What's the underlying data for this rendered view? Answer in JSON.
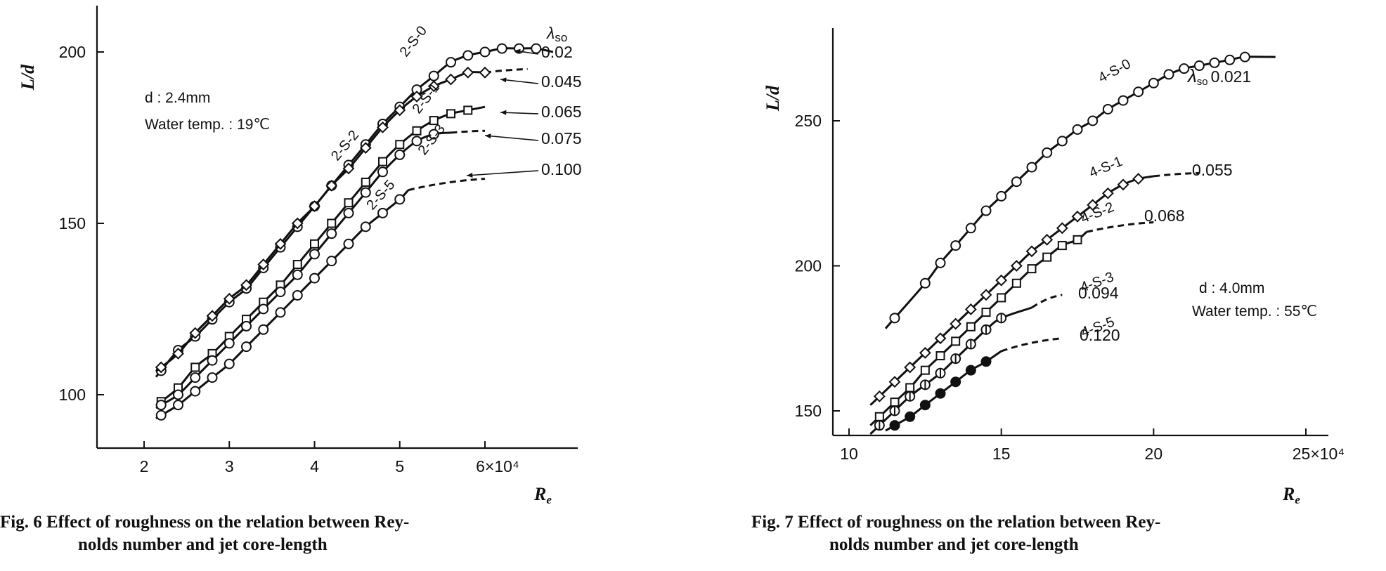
{
  "chart_data": [
    {
      "type": "line",
      "figure": "Fig. 6",
      "caption": [
        "Fig. 6  Effect of roughness on the relation between Rey-",
        "nolds number and jet core-length"
      ],
      "xlabel": "R",
      "xlabel_sub": "e",
      "ylabel": "L/d",
      "xlim": [
        1.55,
        7.1
      ],
      "ylim": [
        85,
        215
      ],
      "xticks": [
        2,
        3,
        4,
        5,
        6
      ],
      "xtick_labels": [
        "2",
        "3",
        "4",
        "5",
        "6×10⁴"
      ],
      "yticks": [
        100,
        150,
        200
      ],
      "ytick_labels": [
        "100",
        "150",
        "200"
      ],
      "legend_title": "λso",
      "notes": [
        "d : 2.4mm",
        "Water temp. : 19℃"
      ],
      "series": [
        {
          "name": "2-S-0",
          "lambda": "0.02",
          "marker": "circle",
          "points": [
            [
              2.2,
              107
            ],
            [
              2.4,
              113
            ],
            [
              2.6,
              117
            ],
            [
              2.8,
              122
            ],
            [
              3.0,
              127
            ],
            [
              3.2,
              131
            ],
            [
              3.4,
              137
            ],
            [
              3.6,
              143
            ],
            [
              3.8,
              149
            ],
            [
              4.0,
              155
            ],
            [
              4.2,
              161
            ],
            [
              4.4,
              167
            ],
            [
              4.6,
              173
            ],
            [
              4.8,
              179
            ],
            [
              5.0,
              184
            ],
            [
              5.2,
              189
            ],
            [
              5.4,
              193
            ],
            [
              5.6,
              197
            ],
            [
              5.8,
              199
            ],
            [
              6.0,
              200
            ],
            [
              6.2,
              201
            ],
            [
              6.4,
              201
            ],
            [
              6.6,
              201
            ]
          ],
          "solid_to": 6.8,
          "dashed_to": null,
          "end_value": 200
        },
        {
          "name": "2-S-1",
          "lambda": "0.045",
          "marker": "diamond",
          "points": [
            [
              2.2,
              108
            ],
            [
              2.4,
              112
            ],
            [
              2.6,
              118
            ],
            [
              2.8,
              123
            ],
            [
              3.0,
              128
            ],
            [
              3.2,
              132
            ],
            [
              3.4,
              138
            ],
            [
              3.6,
              144
            ],
            [
              3.8,
              150
            ],
            [
              4.0,
              155
            ],
            [
              4.2,
              161
            ],
            [
              4.4,
              166
            ],
            [
              4.6,
              172
            ],
            [
              4.8,
              178
            ],
            [
              5.0,
              183
            ],
            [
              5.2,
              187
            ],
            [
              5.4,
              190
            ],
            [
              5.6,
              192
            ],
            [
              5.8,
              194
            ],
            [
              6.0,
              194
            ]
          ],
          "solid_to": 6.0,
          "dashed_to": 6.5,
          "end_value": 195
        },
        {
          "name": "2-S-2",
          "lambda": "0.065",
          "marker": "square",
          "points": [
            [
              2.2,
              98
            ],
            [
              2.4,
              102
            ],
            [
              2.6,
              108
            ],
            [
              2.8,
              112
            ],
            [
              3.0,
              117
            ],
            [
              3.2,
              122
            ],
            [
              3.4,
              127
            ],
            [
              3.6,
              132
            ],
            [
              3.8,
              138
            ],
            [
              4.0,
              144
            ],
            [
              4.2,
              150
            ],
            [
              4.4,
              156
            ],
            [
              4.6,
              162
            ],
            [
              4.8,
              168
            ],
            [
              5.0,
              173
            ],
            [
              5.2,
              177
            ],
            [
              5.4,
              180
            ],
            [
              5.6,
              182
            ],
            [
              5.8,
              183
            ]
          ],
          "solid_to": 6.0,
          "dashed_to": null,
          "end_value": 184
        },
        {
          "name": "2-S-3",
          "lambda": "0.075",
          "marker": "circle",
          "points": [
            [
              2.2,
              97
            ],
            [
              2.4,
              100
            ],
            [
              2.6,
              105
            ],
            [
              2.8,
              110
            ],
            [
              3.0,
              115
            ],
            [
              3.2,
              120
            ],
            [
              3.4,
              125
            ],
            [
              3.6,
              130
            ],
            [
              3.8,
              135
            ],
            [
              4.0,
              141
            ],
            [
              4.2,
              147
            ],
            [
              4.4,
              153
            ],
            [
              4.6,
              159
            ],
            [
              4.8,
              165
            ],
            [
              5.0,
              170
            ],
            [
              5.2,
              174
            ],
            [
              5.4,
              176
            ]
          ],
          "solid_to": 5.6,
          "dashed_to": 6.0,
          "end_value": 177
        },
        {
          "name": "2-S-5",
          "lambda": "0.100",
          "marker": "circle",
          "points": [
            [
              2.2,
              94
            ],
            [
              2.4,
              97
            ],
            [
              2.6,
              101
            ],
            [
              2.8,
              105
            ],
            [
              3.0,
              109
            ],
            [
              3.2,
              114
            ],
            [
              3.4,
              119
            ],
            [
              3.6,
              124
            ],
            [
              3.8,
              129
            ],
            [
              4.0,
              134
            ],
            [
              4.2,
              139
            ],
            [
              4.4,
              144
            ],
            [
              4.6,
              149
            ],
            [
              4.8,
              153
            ],
            [
              5.0,
              157
            ]
          ],
          "solid_to": 5.1,
          "dashed_to": 6.0,
          "end_value": 163
        }
      ]
    },
    {
      "type": "line",
      "figure": "Fig. 7",
      "caption": [
        "Fig. 7  Effect of roughness on the relation between Rey-",
        "nolds number and jet core-length"
      ],
      "xlabel": "R",
      "xlabel_sub": "e",
      "ylabel": "L/d",
      "xlim": [
        10,
        25.6
      ],
      "ylim": [
        140,
        279
      ],
      "xticks": [
        10,
        15,
        20,
        25
      ],
      "xtick_labels": [
        "10",
        "15",
        "20",
        "25×10⁴"
      ],
      "yticks": [
        150,
        200,
        250
      ],
      "ytick_labels": [
        "150",
        "200",
        "250"
      ],
      "notes": [
        "d : 4.0mm",
        "Water temp. : 55℃"
      ],
      "series": [
        {
          "name": "4-S-0",
          "lambda": "λso 0.021",
          "marker": "circle",
          "points": [
            [
              11.5,
              182
            ],
            [
              12.5,
              194
            ],
            [
              13.0,
              201
            ],
            [
              13.5,
              207
            ],
            [
              14.0,
              213
            ],
            [
              14.5,
              219
            ],
            [
              15.0,
              224
            ],
            [
              15.5,
              229
            ],
            [
              16.0,
              234
            ],
            [
              16.5,
              239
            ],
            [
              17.0,
              243
            ],
            [
              17.5,
              247
            ],
            [
              18.0,
              250
            ],
            [
              18.5,
              254
            ],
            [
              19.0,
              257
            ],
            [
              19.5,
              260
            ],
            [
              20.0,
              263
            ],
            [
              20.5,
              266
            ],
            [
              21.0,
              268
            ],
            [
              21.5,
              269
            ],
            [
              22.0,
              270
            ],
            [
              22.5,
              271
            ],
            [
              23.0,
              272
            ]
          ],
          "solid_to": 24.0,
          "dashed_to": null,
          "end_value": 272
        },
        {
          "name": "4-S-1",
          "lambda": "0.055",
          "marker": "diamond",
          "points": [
            [
              11.0,
              155
            ],
            [
              11.5,
              160
            ],
            [
              12.0,
              165
            ],
            [
              12.5,
              170
            ],
            [
              13.0,
              175
            ],
            [
              13.5,
              180
            ],
            [
              14.0,
              185
            ],
            [
              14.5,
              190
            ],
            [
              15.0,
              195
            ],
            [
              15.5,
              200
            ],
            [
              16.0,
              205
            ],
            [
              16.5,
              209
            ],
            [
              17.0,
              213
            ],
            [
              17.5,
              217
            ],
            [
              18.0,
              221
            ],
            [
              18.5,
              225
            ],
            [
              19.0,
              228
            ],
            [
              19.5,
              230
            ]
          ],
          "solid_to": 20.0,
          "dashed_to": 21.5,
          "end_value": 232
        },
        {
          "name": "4-S-2",
          "lambda": "0.068",
          "marker": "square",
          "points": [
            [
              11.0,
              148
            ],
            [
              11.5,
              153
            ],
            [
              12.0,
              158
            ],
            [
              12.5,
              164
            ],
            [
              13.0,
              169
            ],
            [
              13.5,
              174
            ],
            [
              14.0,
              179
            ],
            [
              14.5,
              184
            ],
            [
              15.0,
              189
            ],
            [
              15.5,
              194
            ],
            [
              16.0,
              199
            ],
            [
              16.5,
              203
            ],
            [
              17.0,
              207
            ],
            [
              17.5,
              209
            ]
          ],
          "solid_to": 17.8,
          "dashed_to": 20.0,
          "end_value": 215
        },
        {
          "name": "4-S-3",
          "lambda": "0.094",
          "marker": "circle-bar",
          "points": [
            [
              11.0,
              145
            ],
            [
              11.5,
              150
            ],
            [
              12.0,
              155
            ],
            [
              12.5,
              159
            ],
            [
              13.0,
              163
            ],
            [
              13.5,
              168
            ],
            [
              14.0,
              173
            ],
            [
              14.5,
              178
            ],
            [
              15.0,
              182
            ]
          ],
          "solid_to": 16.0,
          "dashed_to": 17.0,
          "end_value": 190
        },
        {
          "name": "4-S-5",
          "lambda": "0.120",
          "marker": "filled-circle",
          "points": [
            [
              11.5,
              145
            ],
            [
              12.0,
              148
            ],
            [
              12.5,
              152
            ],
            [
              13.0,
              156
            ],
            [
              13.5,
              160
            ],
            [
              14.0,
              164
            ],
            [
              14.5,
              167
            ]
          ],
          "solid_to": 15.0,
          "dashed_to": 17.0,
          "end_value": 175
        }
      ]
    }
  ]
}
